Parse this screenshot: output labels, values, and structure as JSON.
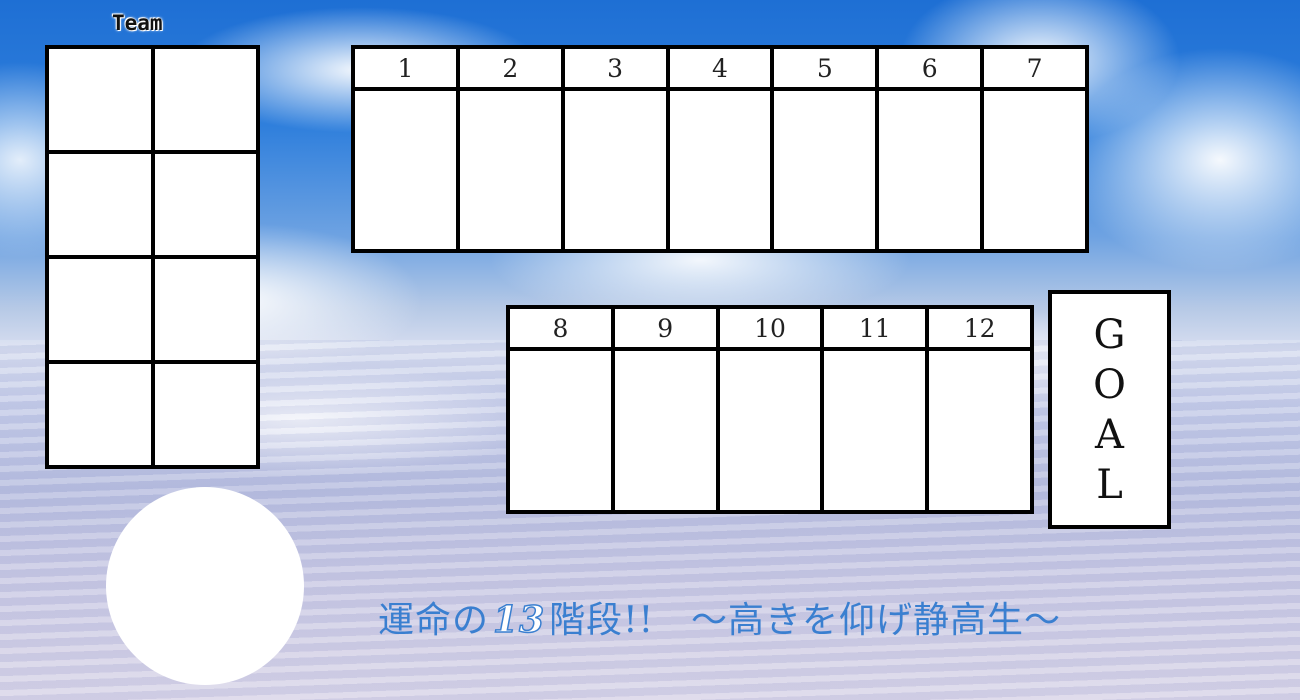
{
  "team": {
    "label": "Team",
    "cells": 8
  },
  "stages": {
    "top_row": [
      "1",
      "2",
      "3",
      "4",
      "5",
      "6",
      "7"
    ],
    "bottom_row": [
      "8",
      "9",
      "10",
      "11",
      "12"
    ]
  },
  "goal": {
    "letters": [
      "G",
      "O",
      "A",
      "L"
    ]
  },
  "slogan": {
    "prefix": "運命の",
    "number": "13",
    "suffix": "階段!!　～高きを仰げ静高生～",
    "color": "#3a7fd0"
  },
  "icons": {
    "photo": "photo-placeholder-circle"
  }
}
